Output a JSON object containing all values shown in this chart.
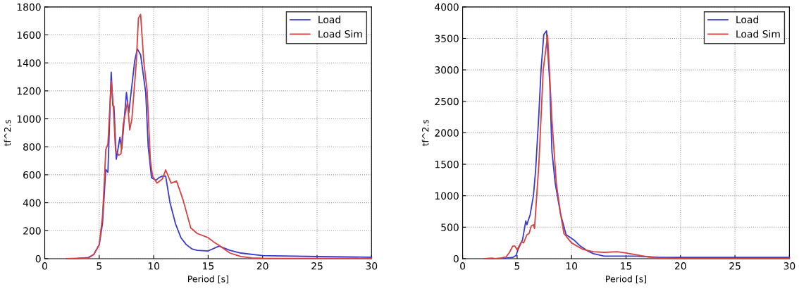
{
  "chart_data": [
    {
      "type": "line",
      "xlabel": "Period [s]",
      "ylabel": "tf^2.s",
      "xlim": [
        0,
        30
      ],
      "xticks": [
        0,
        5,
        10,
        15,
        20,
        25,
        30
      ],
      "ylim": [
        0,
        1800
      ],
      "yticks": [
        0,
        200,
        400,
        600,
        800,
        1000,
        1200,
        1400,
        1600,
        1800
      ],
      "grid": true,
      "legend": "top right",
      "line_style": "solid",
      "series": [
        {
          "name": "Load",
          "color": "#3a3ad0",
          "x": [
            2,
            3,
            4,
            4.5,
            5,
            5.3,
            5.6,
            5.8,
            6.1,
            6.25,
            6.35,
            6.57,
            6.9,
            7.07,
            7.5,
            7.72,
            8.26,
            8.5,
            8.8,
            9.27,
            9.5,
            9.8,
            10.2,
            10.5,
            10.8,
            11.1,
            11.5,
            12,
            12.5,
            13,
            13.5,
            14,
            15,
            16,
            17,
            18,
            20,
            25,
            30
          ],
          "values": [
            0,
            2,
            8,
            30,
            100,
            250,
            637,
            618,
            1334,
            1095,
            1090,
            711,
            868,
            783,
            1188,
            1045,
            1415,
            1500,
            1458,
            1188,
            800,
            580,
            560,
            580,
            590,
            590,
            400,
            250,
            150,
            100,
            70,
            60,
            55,
            90,
            60,
            40,
            22,
            15,
            10
          ]
        },
        {
          "name": "Load Sim",
          "color": "#d9403f",
          "x": [
            2,
            4,
            4.5,
            5,
            5.3,
            5.5,
            5.6,
            5.8,
            6.1,
            6.3,
            6.5,
            6.8,
            7.0,
            7.2,
            7.6,
            7.8,
            8.0,
            8.4,
            8.6,
            8.8,
            9.1,
            9.4,
            9.7,
            9.9,
            10.3,
            10.8,
            11.1,
            11.6,
            12.1,
            12.7,
            13.4,
            14,
            15,
            15.5,
            16,
            17,
            18,
            19,
            20,
            25,
            30
          ],
          "values": [
            0,
            5,
            30,
            100,
            300,
            600,
            780,
            820,
            1270,
            1080,
            770,
            740,
            750,
            960,
            1120,
            920,
            1000,
            1400,
            1719,
            1747,
            1400,
            1200,
            700,
            590,
            540,
            570,
            635,
            540,
            555,
            420,
            220,
            180,
            150,
            120,
            95,
            40,
            15,
            5,
            3,
            2,
            2
          ]
        }
      ]
    },
    {
      "type": "line",
      "xlabel": "Period [s]",
      "ylabel": "tf^2.s",
      "xlim": [
        0,
        30
      ],
      "xticks": [
        0,
        5,
        10,
        15,
        20,
        25,
        30
      ],
      "ylim": [
        0,
        4000
      ],
      "yticks": [
        0,
        500,
        1000,
        1500,
        2000,
        2500,
        3000,
        3500,
        4000
      ],
      "grid": true,
      "legend": "top right",
      "line_style": "solid",
      "series": [
        {
          "name": "Load",
          "color": "#3a3ad0",
          "x": [
            2,
            3,
            4,
            4.6,
            4.9,
            5.1,
            5.5,
            5.8,
            5.9,
            6.2,
            6.5,
            6.7,
            7.0,
            7.2,
            7.45,
            7.7,
            8.0,
            8.2,
            8.5,
            9.0,
            9.5,
            10.2,
            10.8,
            11.5,
            12,
            13,
            14,
            15,
            16,
            17,
            18,
            20,
            25,
            30
          ],
          "values": [
            0,
            0,
            10,
            20,
            50,
            150,
            300,
            600,
            540,
            700,
            1000,
            1400,
            2300,
            3000,
            3560,
            3620,
            2800,
            1700,
            1200,
            700,
            380,
            300,
            200,
            120,
            80,
            40,
            40,
            40,
            40,
            30,
            20,
            20,
            20,
            20
          ]
        },
        {
          "name": "Load Sim",
          "color": "#d9403f",
          "x": [
            2,
            2.7,
            3,
            3.5,
            4,
            4.3,
            4.6,
            4.8,
            5.0,
            5.4,
            5.6,
            5.9,
            6.1,
            6.3,
            6.5,
            6.6,
            7.0,
            7.4,
            7.8,
            8.2,
            8.6,
            9.0,
            9.3,
            10,
            11,
            12,
            13,
            14.2,
            15,
            16,
            17,
            18,
            20,
            25,
            30
          ],
          "values": [
            0,
            10,
            0,
            10,
            30,
            100,
            200,
            200,
            140,
            270,
            250,
            380,
            400,
            520,
            540,
            480,
            1500,
            3000,
            3550,
            2200,
            1200,
            700,
            400,
            250,
            150,
            110,
            100,
            110,
            90,
            60,
            30,
            10,
            0,
            0,
            0
          ]
        }
      ]
    }
  ]
}
